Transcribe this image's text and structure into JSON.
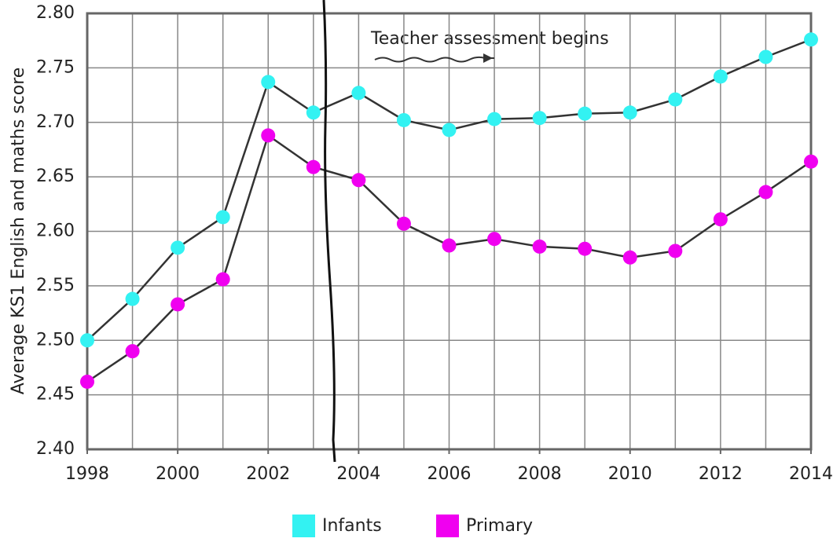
{
  "chart_data": {
    "type": "line",
    "y_label": "Average KS1 English and maths score",
    "annotation": "Teacher assessment begins",
    "x": [
      1998,
      1999,
      2000,
      2001,
      2002,
      2003,
      2004,
      2005,
      2006,
      2007,
      2008,
      2009,
      2010,
      2011,
      2012,
      2013,
      2014
    ],
    "series": [
      {
        "name": "Infants",
        "color": "#33f2f2",
        "values": [
          2.5,
          2.538,
          2.585,
          2.613,
          2.737,
          2.709,
          2.727,
          2.702,
          2.693,
          2.703,
          2.704,
          2.708,
          2.709,
          2.721,
          2.742,
          2.76,
          2.776
        ]
      },
      {
        "name": "Primary",
        "color": "#f000f0",
        "values": [
          2.462,
          2.49,
          2.533,
          2.556,
          2.688,
          2.659,
          2.647,
          2.607,
          2.587,
          2.593,
          2.586,
          2.584,
          2.576,
          2.582,
          2.611,
          2.636,
          2.664
        ]
      }
    ],
    "xlim": [
      1998,
      2014
    ],
    "xticks": [
      1998,
      2000,
      2002,
      2004,
      2006,
      2008,
      2010,
      2012,
      2014
    ],
    "ylim": [
      2.4,
      2.8
    ],
    "yticks": [
      {
        "value": 2.4,
        "label": "2.40"
      },
      {
        "value": 2.45,
        "label": "2.45"
      },
      {
        "value": 2.5,
        "label": "2.50"
      },
      {
        "value": 2.55,
        "label": "2.55"
      },
      {
        "value": 2.6,
        "label": "2.60"
      },
      {
        "value": 2.65,
        "label": "2.65"
      },
      {
        "value": 2.7,
        "label": "2.70"
      },
      {
        "value": 2.75,
        "label": "2.75"
      },
      {
        "value": 2.8,
        "label": "2.80"
      }
    ],
    "grid": true
  }
}
